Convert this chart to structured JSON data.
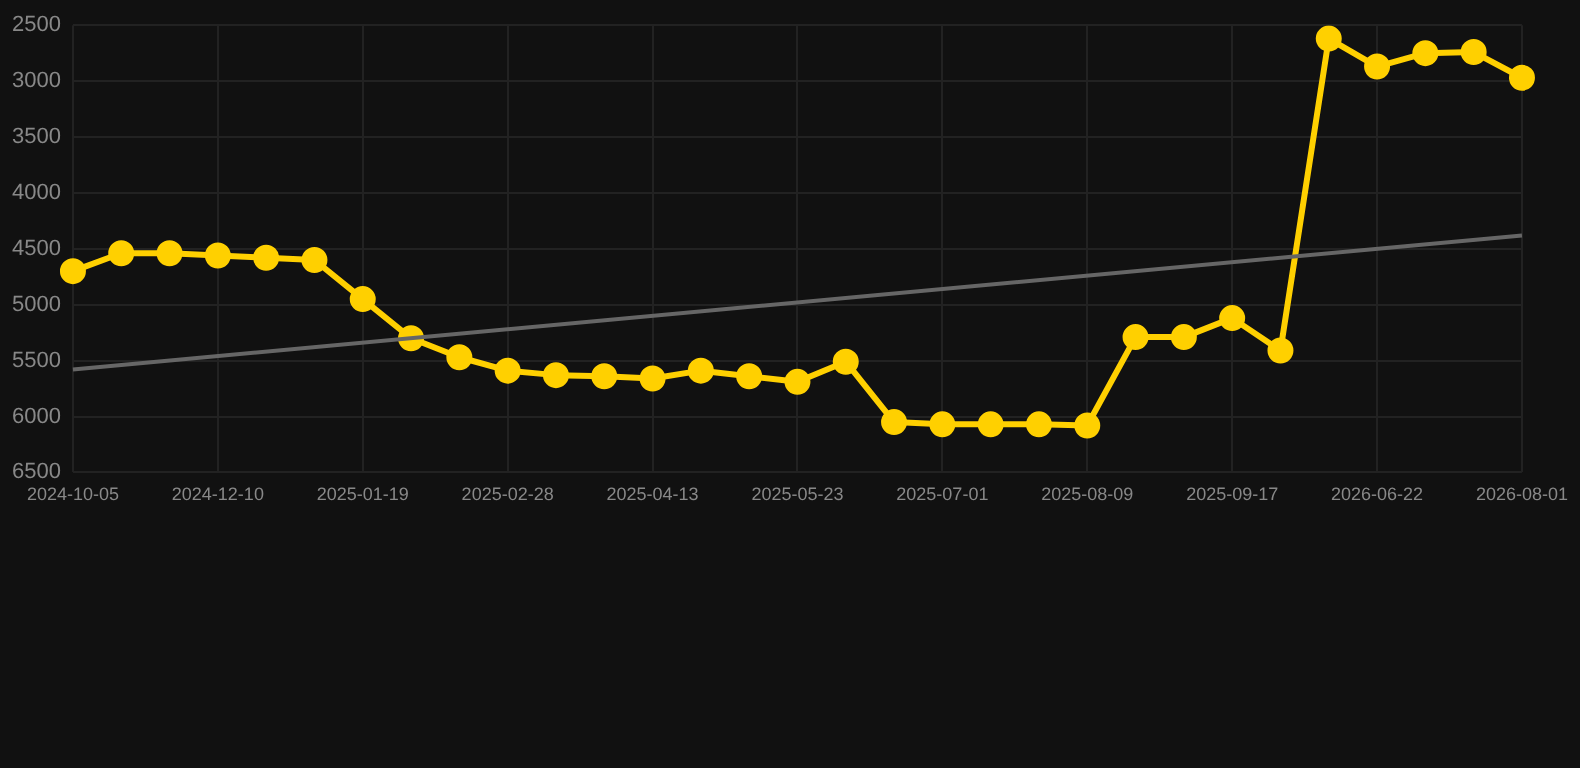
{
  "chart_data": {
    "type": "line",
    "categories": [
      "2024-10-05",
      null,
      null,
      "2024-12-10",
      null,
      null,
      "2025-01-19",
      null,
      null,
      "2025-02-28",
      null,
      null,
      "2025-04-13",
      null,
      null,
      "2025-05-23",
      null,
      null,
      "2025-07-01",
      null,
      null,
      "2025-08-09",
      null,
      null,
      "2025-09-17",
      null,
      null,
      "2026-06-22",
      null,
      null,
      "2026-08-01"
    ],
    "series": [
      {
        "type": "line",
        "color": "#ffd000",
        "marker": "circle",
        "values": [
          4700,
          4540,
          4540,
          4560,
          4580,
          4600,
          4950,
          5300,
          5470,
          5590,
          5630,
          5640,
          5660,
          5590,
          5640,
          5690,
          5510,
          6050,
          6070,
          6070,
          6070,
          6080,
          5290,
          5290,
          5120,
          5410,
          2620,
          2870,
          2750,
          2740,
          2970
        ]
      },
      {
        "type": "line",
        "color": "#666666",
        "marker": "none",
        "values": [
          5580,
          null,
          null,
          null,
          null,
          null,
          null,
          null,
          null,
          null,
          null,
          null,
          null,
          null,
          null,
          null,
          null,
          null,
          null,
          null,
          null,
          null,
          null,
          null,
          null,
          null,
          null,
          null,
          null,
          null,
          4380
        ]
      }
    ],
    "ylim": [
      6500,
      2500
    ],
    "yticks": [
      2500,
      3000,
      3500,
      4000,
      4500,
      5000,
      5500,
      6000,
      6500
    ],
    "grid": true,
    "legend": false
  }
}
